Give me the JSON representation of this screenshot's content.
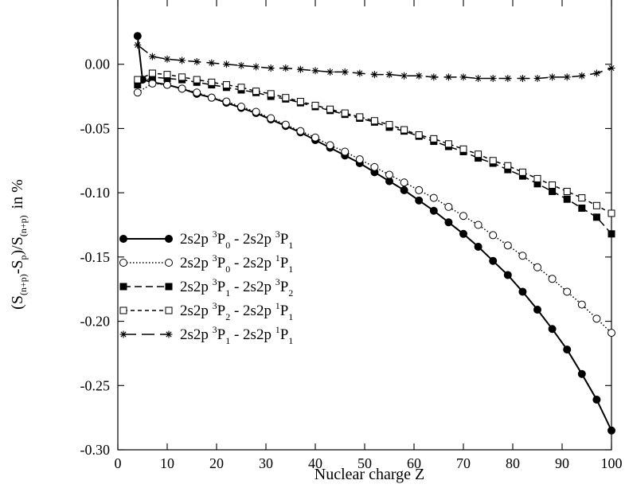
{
  "chart_data": {
    "type": "line",
    "xlabel": "Nuclear charge Z",
    "ylabel": {
      "main": "(S",
      "sub1": "(n+p)",
      "mid": "-S",
      "sub2": "p",
      "mid2": ")/S",
      "sub3": "(n+p)",
      "tail": "in %"
    },
    "xlim": [
      0,
      100
    ],
    "ylim": [
      -0.3,
      0.05
    ],
    "xticks": [
      0,
      10,
      20,
      30,
      40,
      50,
      60,
      70,
      80,
      90,
      100
    ],
    "yticks": [
      0.0,
      -0.05,
      -0.1,
      -0.15,
      -0.2,
      -0.25,
      -0.3
    ],
    "ytick_labels": [
      "0.00",
      "-0.05",
      "-0.10",
      "-0.15",
      "-0.20",
      "-0.25",
      "-0.30"
    ],
    "grid": false,
    "legend_position": "lower-left",
    "series": [
      {
        "name": "2s2p 3P0 - 2s2p 3P1",
        "label": {
          "a": "2s2p ",
          "s1": "3",
          "b": "P",
          "u1": "0",
          "c": " - 2s2p ",
          "s2": "3",
          "d": "P",
          "u2": "1"
        },
        "line": "solid",
        "marker": "filled-circle",
        "x": [
          4,
          5,
          7,
          10,
          13,
          16,
          19,
          22,
          25,
          28,
          31,
          34,
          37,
          40,
          43,
          46,
          49,
          52,
          55,
          58,
          61,
          64,
          67,
          70,
          73,
          76,
          79,
          82,
          85,
          88,
          91,
          94,
          97,
          100
        ],
        "y": [
          0.022,
          -0.012,
          -0.014,
          -0.016,
          -0.019,
          -0.023,
          -0.026,
          -0.03,
          -0.034,
          -0.038,
          -0.043,
          -0.048,
          -0.053,
          -0.059,
          -0.065,
          -0.071,
          -0.077,
          -0.084,
          -0.091,
          -0.098,
          -0.106,
          -0.114,
          -0.123,
          -0.132,
          -0.142,
          -0.153,
          -0.164,
          -0.177,
          -0.191,
          -0.206,
          -0.222,
          -0.241,
          -0.261,
          -0.285
        ]
      },
      {
        "name": "2s2p 3P0 - 2s2p 1P1",
        "label": {
          "a": "2s2p ",
          "s1": "3",
          "b": "P",
          "u1": "0",
          "c": " - 2s2p ",
          "s2": "1",
          "d": "P",
          "u2": "1"
        },
        "line": "dotted",
        "marker": "open-circle",
        "x": [
          4,
          7,
          10,
          13,
          16,
          19,
          22,
          25,
          28,
          31,
          34,
          37,
          40,
          43,
          46,
          49,
          52,
          55,
          58,
          61,
          64,
          67,
          70,
          73,
          76,
          79,
          82,
          85,
          88,
          91,
          94,
          97,
          100
        ],
        "y": [
          -0.022,
          -0.015,
          -0.016,
          -0.019,
          -0.022,
          -0.026,
          -0.029,
          -0.033,
          -0.037,
          -0.042,
          -0.047,
          -0.052,
          -0.057,
          -0.063,
          -0.068,
          -0.074,
          -0.08,
          -0.086,
          -0.092,
          -0.098,
          -0.104,
          -0.111,
          -0.118,
          -0.125,
          -0.133,
          -0.141,
          -0.149,
          -0.158,
          -0.167,
          -0.177,
          -0.187,
          -0.198,
          -0.209
        ]
      },
      {
        "name": "2s2p 3P1 - 2s2p 3P2",
        "label": {
          "a": "2s2p ",
          "s1": "3",
          "b": "P",
          "u1": "1",
          "c": " - 2s2p ",
          "s2": "3",
          "d": "P",
          "u2": "2"
        },
        "line": "dashed",
        "marker": "filled-square",
        "x": [
          4,
          7,
          10,
          13,
          16,
          19,
          22,
          25,
          28,
          31,
          34,
          37,
          40,
          43,
          46,
          49,
          52,
          55,
          58,
          61,
          64,
          67,
          70,
          73,
          76,
          79,
          82,
          85,
          88,
          91,
          94,
          97,
          100
        ],
        "y": [
          -0.016,
          -0.01,
          -0.011,
          -0.012,
          -0.014,
          -0.016,
          -0.018,
          -0.02,
          -0.022,
          -0.025,
          -0.027,
          -0.03,
          -0.033,
          -0.036,
          -0.039,
          -0.042,
          -0.045,
          -0.049,
          -0.052,
          -0.056,
          -0.06,
          -0.064,
          -0.068,
          -0.073,
          -0.077,
          -0.082,
          -0.087,
          -0.093,
          -0.099,
          -0.105,
          -0.112,
          -0.119,
          -0.132
        ]
      },
      {
        "name": "2s2p 3P2 - 2s2p 1P1",
        "label": {
          "a": "2s2p ",
          "s1": "3",
          "b": "P",
          "u1": "2",
          "c": " - 2s2p ",
          "s2": "1",
          "d": "P",
          "u2": "1"
        },
        "line": "short-dashed",
        "marker": "open-square",
        "x": [
          4,
          7,
          10,
          13,
          16,
          19,
          22,
          25,
          28,
          31,
          34,
          37,
          40,
          43,
          46,
          49,
          52,
          55,
          58,
          61,
          64,
          67,
          70,
          73,
          76,
          79,
          82,
          85,
          88,
          91,
          94,
          97,
          100
        ],
        "y": [
          -0.012,
          -0.007,
          -0.008,
          -0.01,
          -0.012,
          -0.014,
          -0.016,
          -0.018,
          -0.021,
          -0.023,
          -0.026,
          -0.029,
          -0.032,
          -0.035,
          -0.038,
          -0.041,
          -0.044,
          -0.047,
          -0.051,
          -0.055,
          -0.058,
          -0.062,
          -0.066,
          -0.07,
          -0.075,
          -0.079,
          -0.084,
          -0.089,
          -0.094,
          -0.099,
          -0.104,
          -0.11,
          -0.116
        ]
      },
      {
        "name": "2s2p 3P1 - 2s2p 1P1",
        "label": {
          "a": "2s2p ",
          "s1": "3",
          "b": "P",
          "u1": "1",
          "c": " - 2s2p ",
          "s2": "1",
          "d": "P",
          "u2": "1"
        },
        "line": "long-dashed",
        "marker": "asterisk",
        "x": [
          4,
          7,
          10,
          13,
          16,
          19,
          22,
          25,
          28,
          31,
          34,
          37,
          40,
          43,
          46,
          49,
          52,
          55,
          58,
          61,
          64,
          67,
          70,
          73,
          76,
          79,
          82,
          85,
          88,
          91,
          94,
          97,
          100
        ],
        "y": [
          0.015,
          0.006,
          0.004,
          0.003,
          0.002,
          0.001,
          0.0,
          -0.001,
          -0.002,
          -0.003,
          -0.003,
          -0.004,
          -0.005,
          -0.006,
          -0.006,
          -0.007,
          -0.008,
          -0.008,
          -0.009,
          -0.009,
          -0.01,
          -0.01,
          -0.01,
          -0.011,
          -0.011,
          -0.011,
          -0.011,
          -0.011,
          -0.01,
          -0.01,
          -0.009,
          -0.007,
          -0.003
        ]
      }
    ]
  }
}
